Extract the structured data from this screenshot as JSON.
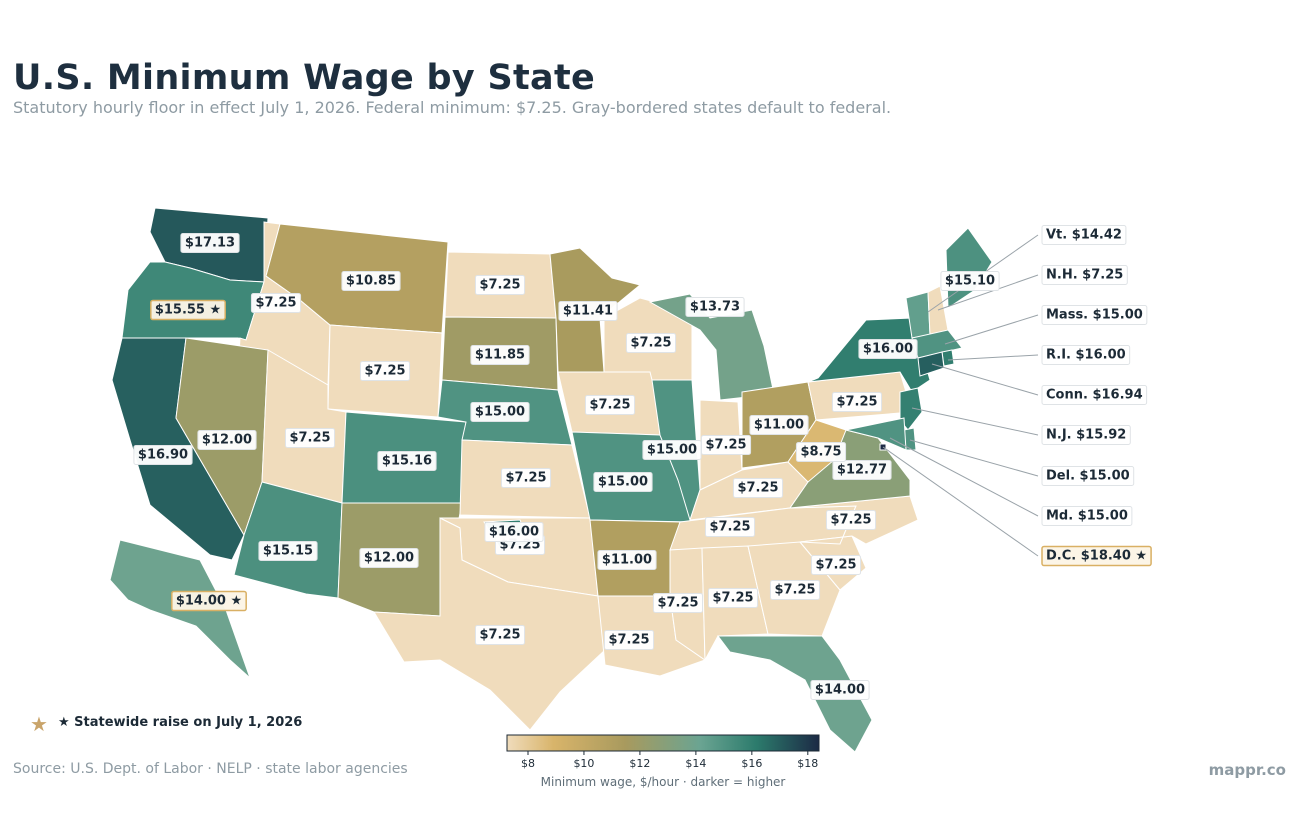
{
  "title": "U.S. Minimum Wage by State",
  "subtitle": "Statutory hourly floor in effect July 1, 2026. Federal minimum: $7.25. Gray-bordered states default to federal.",
  "source": "Source: U.S. Dept. of Labor · NELP · state labor agencies",
  "brand": "mappr.co",
  "legend": {
    "star_icon": "star-icon",
    "label": "★  Statewide raise on July 1, 2026"
  },
  "colorbar": {
    "title": "Minimum wage, $/hour  ·  darker = higher",
    "ticks": [
      "$8",
      "$10",
      "$12",
      "$14",
      "$16",
      "$18"
    ],
    "range": [
      7.25,
      18.4
    ],
    "colors": [
      "#f0dcbc",
      "#d8b46a",
      "#a89a5e",
      "#6aa492",
      "#2c7b6c",
      "#1c2a45"
    ]
  },
  "states": [
    {
      "id": "WA",
      "label": "$17.13",
      "wage": 17.13
    },
    {
      "id": "OR",
      "label": "$15.55 ★",
      "wage": 15.55,
      "raise": true
    },
    {
      "id": "CA",
      "label": "$16.90",
      "wage": 16.9
    },
    {
      "id": "ID",
      "label": "$7.25",
      "wage": 7.25
    },
    {
      "id": "NV",
      "label": "$12.00",
      "wage": 12.0
    },
    {
      "id": "MT",
      "label": "$10.85",
      "wage": 10.85
    },
    {
      "id": "WY",
      "label": "$7.25",
      "wage": 7.25
    },
    {
      "id": "UT",
      "label": "$7.25",
      "wage": 7.25
    },
    {
      "id": "AZ",
      "label": "$15.15",
      "wage": 15.15
    },
    {
      "id": "CO",
      "label": "$15.16",
      "wage": 15.16
    },
    {
      "id": "NM",
      "label": "$12.00",
      "wage": 12.0
    },
    {
      "id": "ND",
      "label": "$7.25",
      "wage": 7.25
    },
    {
      "id": "SD",
      "label": "$11.85",
      "wage": 11.85
    },
    {
      "id": "NE",
      "label": "$15.00",
      "wage": 15.0
    },
    {
      "id": "KS",
      "label": "$7.25",
      "wage": 7.25
    },
    {
      "id": "OK",
      "label": "$7.25",
      "wage": 7.25
    },
    {
      "id": "TX",
      "label": "$7.25",
      "wage": 7.25
    },
    {
      "id": "MN",
      "label": "$11.41",
      "wage": 11.41
    },
    {
      "id": "IA",
      "label": "$7.25",
      "wage": 7.25
    },
    {
      "id": "MO",
      "label": "$15.00",
      "wage": 15.0
    },
    {
      "id": "AR",
      "label": "$11.00",
      "wage": 11.0
    },
    {
      "id": "LA",
      "label": "$7.25",
      "wage": 7.25
    },
    {
      "id": "WI",
      "label": "$7.25",
      "wage": 7.25
    },
    {
      "id": "IL",
      "label": "$15.00",
      "wage": 15.0
    },
    {
      "id": "MI",
      "label": "$13.73",
      "wage": 13.73
    },
    {
      "id": "IN",
      "label": "$7.25",
      "wage": 7.25
    },
    {
      "id": "OH",
      "label": "$11.00",
      "wage": 11.0
    },
    {
      "id": "KY",
      "label": "$7.25",
      "wage": 7.25
    },
    {
      "id": "TN",
      "label": "$7.25",
      "wage": 7.25
    },
    {
      "id": "MS",
      "label": "$7.25",
      "wage": 7.25
    },
    {
      "id": "AL",
      "label": "$7.25",
      "wage": 7.25
    },
    {
      "id": "GA",
      "label": "$7.25",
      "wage": 7.25
    },
    {
      "id": "FL",
      "label": "$14.00",
      "wage": 14.0
    },
    {
      "id": "SC",
      "label": "$7.25",
      "wage": 7.25
    },
    {
      "id": "NC",
      "label": "$7.25",
      "wage": 7.25
    },
    {
      "id": "VA",
      "label": "$12.77",
      "wage": 12.77
    },
    {
      "id": "WV",
      "label": "$8.75",
      "wage": 8.75
    },
    {
      "id": "PA",
      "label": "$7.25",
      "wage": 7.25
    },
    {
      "id": "NY",
      "label": "$16.00",
      "wage": 16.0
    },
    {
      "id": "ME",
      "label": "$15.10",
      "wage": 15.1
    },
    {
      "id": "AK",
      "label": "$14.00 ★",
      "wage": 14.0,
      "raise": true
    },
    {
      "id": "HI",
      "label": "$16.00",
      "wage": 16.0
    }
  ],
  "callouts": [
    {
      "id": "VT",
      "label": "Vt. $14.42",
      "wage": 14.42
    },
    {
      "id": "NH",
      "label": "N.H. $7.25",
      "wage": 7.25
    },
    {
      "id": "MA",
      "label": "Mass. $15.00",
      "wage": 15.0
    },
    {
      "id": "RI",
      "label": "R.I. $16.00",
      "wage": 16.0
    },
    {
      "id": "CT",
      "label": "Conn. $16.94",
      "wage": 16.94
    },
    {
      "id": "NJ",
      "label": "N.J. $15.92",
      "wage": 15.92
    },
    {
      "id": "DE",
      "label": "Del. $15.00",
      "wage": 15.0
    },
    {
      "id": "MD",
      "label": "Md. $15.00",
      "wage": 15.0
    },
    {
      "id": "DC",
      "label": "D.C. $18.40 ★",
      "wage": 18.4,
      "raise": true
    }
  ]
}
